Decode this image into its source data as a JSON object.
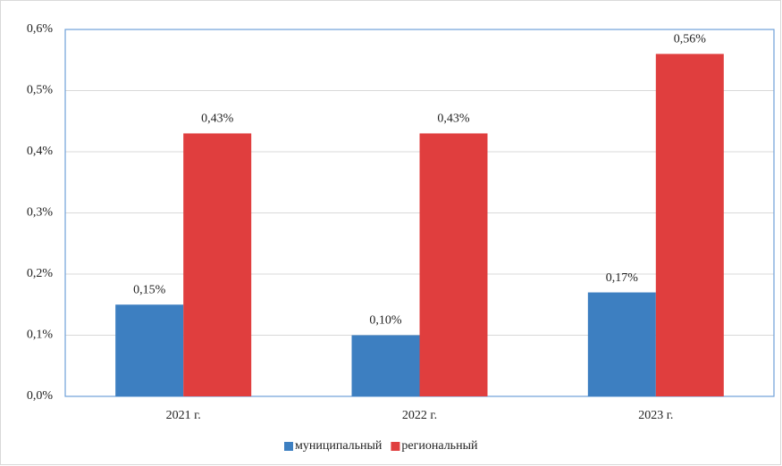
{
  "chart_data": {
    "type": "bar",
    "categories": [
      "2021 г.",
      "2022 г.",
      "2023 г."
    ],
    "series": [
      {
        "name": "муниципальный",
        "color": "#3d7fc1",
        "values": [
          0.15,
          0.1,
          0.17
        ],
        "value_labels": [
          "0,15%",
          "0,10%",
          "0,17%"
        ]
      },
      {
        "name": "региональный",
        "color": "#e03e3e",
        "values": [
          0.43,
          0.43,
          0.56
        ],
        "value_labels": [
          "0,43%",
          "0,43%",
          "0,56%"
        ]
      }
    ],
    "ylim": [
      0,
      0.6
    ],
    "yticks": [
      {
        "value": 0,
        "label": "0,0%"
      },
      {
        "value": 0.1,
        "label": "0,1%"
      },
      {
        "value": 0.2,
        "label": "0,2%"
      },
      {
        "value": 0.3,
        "label": "0,3%"
      },
      {
        "value": 0.4,
        "label": "0,4%"
      },
      {
        "value": 0.5,
        "label": "0,5%"
      },
      {
        "value": 0.6,
        "label": "0,6%"
      }
    ],
    "grid": true,
    "legend": "bottom"
  }
}
